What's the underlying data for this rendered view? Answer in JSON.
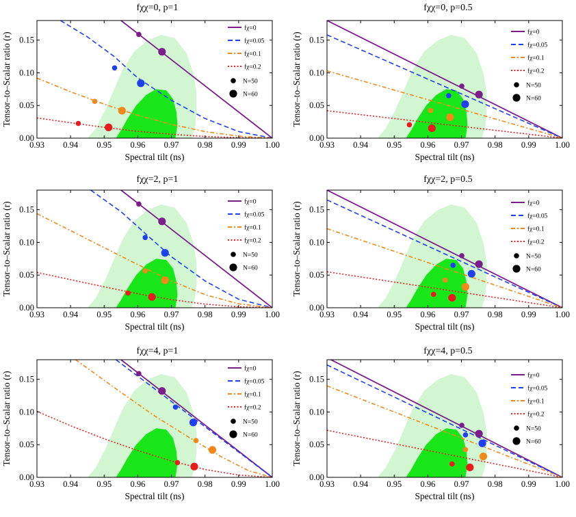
{
  "figure": {
    "legend_labels": [
      "fχ=0",
      "fχ=0.05",
      "fχ=0.1",
      "fχ=0.2"
    ],
    "legend_sizes": [
      "N=50",
      "N=60"
    ]
  },
  "chart_data": [
    {
      "type": "line",
      "title": "fχχ=0, p=1",
      "xlabel": "Spectral tilt (ns)",
      "ylabel": "Tensor–to–Scalar ratio (r)",
      "xlim": [
        0.93,
        1.0
      ],
      "ylim": [
        0,
        0.18
      ],
      "xticks": [
        "0.93",
        "0.94",
        "0.95",
        "0.96",
        "0.97",
        "0.98",
        "0.99",
        "1.00"
      ],
      "yticks": [
        "0.00",
        "0.05",
        "0.10",
        "0.15"
      ],
      "series": [
        {
          "name": "fχ=0",
          "color": "#7b1e8c",
          "dash": "solid",
          "line": [
            [
              0.955,
              0.18
            ],
            [
              1.0,
              0.0
            ]
          ],
          "points": [
            [
              0.9603,
              0.1587
            ],
            [
              0.9672,
              0.1322
            ]
          ]
        },
        {
          "name": "fχ=0.05",
          "color": "#1f3ff0",
          "dash": "dashed",
          "line": [
            [
              0.937,
              0.18
            ],
            [
              0.945,
              0.155
            ],
            [
              0.953,
              0.125
            ],
            [
              0.96,
              0.092
            ],
            [
              0.97,
              0.058
            ],
            [
              0.98,
              0.03
            ],
            [
              0.99,
              0.01
            ],
            [
              1.0,
              0.0
            ]
          ],
          "points": [
            [
              0.9531,
              0.1075
            ],
            [
              0.9609,
              0.084
            ]
          ]
        },
        {
          "name": "fχ=0.1",
          "color": "#f0891a",
          "dash": "dashdot",
          "line": [
            [
              0.93,
              0.092
            ],
            [
              0.94,
              0.071
            ],
            [
              0.95,
              0.052
            ],
            [
              0.96,
              0.035
            ],
            [
              0.97,
              0.021
            ],
            [
              0.98,
              0.01
            ],
            [
              0.99,
              0.003
            ],
            [
              1.0,
              0.0
            ]
          ],
          "points": [
            [
              0.9472,
              0.0563
            ],
            [
              0.9553,
              0.042
            ]
          ]
        },
        {
          "name": "fχ=0.2",
          "color": "#e81c1c",
          "dash": "dotted",
          "line": [
            [
              0.93,
              0.031
            ],
            [
              0.94,
              0.0235
            ],
            [
              0.95,
              0.0165
            ],
            [
              0.96,
              0.0105
            ],
            [
              0.97,
              0.006
            ],
            [
              0.98,
              0.0025
            ],
            [
              0.99,
              0.0007
            ],
            [
              1.0,
              0.0
            ]
          ],
          "points": [
            [
              0.9423,
              0.0225
            ],
            [
              0.9513,
              0.0165
            ]
          ]
        }
      ]
    },
    {
      "type": "line",
      "title": "fχχ=0, p=0.5",
      "xlabel": "Spectral tilt (ns)",
      "ylabel": "Tensor–to–Scalar ratio (r)",
      "xlim": [
        0.93,
        1.0
      ],
      "ylim": [
        0,
        0.18
      ],
      "xticks": [
        "0.93",
        "0.94",
        "0.95",
        "0.96",
        "0.97",
        "0.98",
        "0.99",
        "1.00"
      ],
      "yticks": [
        "0.00",
        "0.05",
        "0.10",
        "0.15"
      ],
      "series": [
        {
          "name": "fχ=0",
          "color": "#7b1e8c",
          "dash": "solid",
          "line": [
            [
              0.93,
              0.18
            ],
            [
              1.0,
              0.0
            ]
          ],
          "points": [
            [
              0.9701,
              0.0796
            ],
            [
              0.9752,
              0.0667
            ]
          ]
        },
        {
          "name": "fχ=0.05",
          "color": "#1f3ff0",
          "dash": "dashed",
          "line": [
            [
              0.93,
              0.158
            ],
            [
              1.0,
              0.0
            ]
          ],
          "points": [
            [
              0.9662,
              0.065
            ],
            [
              0.9711,
              0.052
            ]
          ]
        },
        {
          "name": "fχ=0.1",
          "color": "#f0891a",
          "dash": "dashdot",
          "line": [
            [
              0.93,
              0.103
            ],
            [
              1.0,
              0.0
            ]
          ],
          "points": [
            [
              0.9608,
              0.0425
            ],
            [
              0.9666,
              0.032
            ]
          ]
        },
        {
          "name": "fχ=0.2",
          "color": "#e81c1c",
          "dash": "dotted",
          "line": [
            [
              0.93,
              0.042
            ],
            [
              1.0,
              0.0
            ]
          ],
          "points": [
            [
              0.9545,
              0.0205
            ],
            [
              0.9612,
              0.0152
            ]
          ]
        }
      ]
    },
    {
      "type": "line",
      "title": "fχχ=2, p=1",
      "xlabel": "Spectral tilt (ns)",
      "ylabel": "Tensor–to–Scalar ratio (r)",
      "xlim": [
        0.93,
        1.0
      ],
      "ylim": [
        0,
        0.18
      ],
      "xticks": [
        "0.93",
        "0.94",
        "0.95",
        "0.96",
        "0.97",
        "0.98",
        "0.99",
        "1.00"
      ],
      "yticks": [
        "0.00",
        "0.05",
        "0.10",
        "0.15"
      ],
      "series": [
        {
          "name": "fχ=0",
          "color": "#7b1e8c",
          "dash": "solid",
          "line": [
            [
              0.955,
              0.18
            ],
            [
              1.0,
              0.0
            ]
          ],
          "points": [
            [
              0.9603,
              0.1587
            ],
            [
              0.9672,
              0.1322
            ]
          ]
        },
        {
          "name": "fχ=0.05",
          "color": "#1f3ff0",
          "dash": "dashed",
          "line": [
            [
              0.946,
              0.18
            ],
            [
              0.955,
              0.147
            ],
            [
              0.963,
              0.11
            ],
            [
              0.97,
              0.078
            ],
            [
              0.98,
              0.041
            ],
            [
              0.99,
              0.013
            ],
            [
              1.0,
              0.0
            ]
          ],
          "points": [
            [
              0.9622,
              0.1075
            ],
            [
              0.9681,
              0.084
            ]
          ]
        },
        {
          "name": "fχ=0.1",
          "color": "#f0891a",
          "dash": "dashdot",
          "line": [
            [
              0.93,
              0.144
            ],
            [
              0.94,
              0.118
            ],
            [
              0.95,
              0.092
            ],
            [
              0.96,
              0.066
            ],
            [
              0.97,
              0.041
            ],
            [
              0.98,
              0.02
            ],
            [
              0.99,
              0.006
            ],
            [
              1.0,
              0.0
            ]
          ],
          "points": [
            [
              0.9622,
              0.0563
            ],
            [
              0.9681,
              0.042
            ]
          ]
        },
        {
          "name": "fχ=0.2",
          "color": "#e81c1c",
          "dash": "dotted",
          "line": [
            [
              0.93,
              0.054
            ],
            [
              0.94,
              0.043
            ],
            [
              0.95,
              0.032
            ],
            [
              0.96,
              0.0215
            ],
            [
              0.97,
              0.0125
            ],
            [
              0.98,
              0.0055
            ],
            [
              0.99,
              0.0015
            ],
            [
              1.0,
              0.0
            ]
          ],
          "points": [
            [
              0.9571,
              0.0225
            ],
            [
              0.9642,
              0.0165
            ]
          ]
        }
      ]
    },
    {
      "type": "line",
      "title": "fχχ=2, p=0.5",
      "xlabel": "Spectral tilt (ns)",
      "ylabel": "Tensor–to–Scalar ratio (r)",
      "xlim": [
        0.93,
        1.0
      ],
      "ylim": [
        0,
        0.18
      ],
      "xticks": [
        "0.93",
        "0.94",
        "0.95",
        "0.96",
        "0.97",
        "0.98",
        "0.99",
        "1.00"
      ],
      "yticks": [
        "0.00",
        "0.05",
        "0.10",
        "0.15"
      ],
      "series": [
        {
          "name": "fχ=0",
          "color": "#7b1e8c",
          "dash": "solid",
          "line": [
            [
              0.93,
              0.18
            ],
            [
              1.0,
              0.0
            ]
          ],
          "points": [
            [
              0.9701,
              0.0796
            ],
            [
              0.9752,
              0.0667
            ]
          ]
        },
        {
          "name": "fχ=0.05",
          "color": "#1f3ff0",
          "dash": "dashed",
          "line": [
            [
              0.93,
              0.165
            ],
            [
              1.0,
              0.0
            ]
          ],
          "points": [
            [
              0.9675,
              0.065
            ],
            [
              0.973,
              0.052
            ]
          ]
        },
        {
          "name": "fχ=0.1",
          "color": "#f0891a",
          "dash": "dashdot",
          "line": [
            [
              0.93,
              0.121
            ],
            [
              1.0,
              0.0
            ]
          ],
          "points": [
            [
              0.9652,
              0.0425
            ],
            [
              0.9712,
              0.032
            ]
          ]
        },
        {
          "name": "fχ=0.2",
          "color": "#e81c1c",
          "dash": "dotted",
          "line": [
            [
              0.93,
              0.055
            ],
            [
              1.0,
              0.0
            ]
          ],
          "points": [
            [
              0.9617,
              0.0205
            ],
            [
              0.9672,
              0.0152
            ]
          ]
        }
      ]
    },
    {
      "type": "line",
      "title": "fχχ=4, p=1",
      "xlabel": "Spectral tilt (ns)",
      "ylabel": "Tensor–to–Scalar ratio (r)",
      "xlim": [
        0.93,
        1.0
      ],
      "ylim": [
        0,
        0.18
      ],
      "xticks": [
        "0.93",
        "0.94",
        "0.95",
        "0.96",
        "0.97",
        "0.98",
        "0.99",
        "1.00"
      ],
      "yticks": [
        "0.00",
        "0.05",
        "0.10",
        "0.15"
      ],
      "series": [
        {
          "name": "fχ=0",
          "color": "#7b1e8c",
          "dash": "solid",
          "line": [
            [
              0.955,
              0.18
            ],
            [
              1.0,
              0.0
            ]
          ],
          "points": [
            [
              0.9603,
              0.1587
            ],
            [
              0.9672,
              0.1322
            ]
          ]
        },
        {
          "name": "fχ=0.05",
          "color": "#1f3ff0",
          "dash": "dashed",
          "line": [
            [
              0.9535,
              0.18
            ],
            [
              1.0,
              0.0
            ]
          ],
          "points": [
            [
              0.9712,
              0.1075
            ],
            [
              0.9765,
              0.084
            ]
          ]
        },
        {
          "name": "fχ=0.1",
          "color": "#f0891a",
          "dash": "dashdot",
          "line": [
            [
              0.9415,
              0.18
            ],
            [
              0.955,
              0.13
            ],
            [
              0.965,
              0.094
            ],
            [
              0.975,
              0.062
            ],
            [
              0.985,
              0.031
            ],
            [
              0.993,
              0.01
            ],
            [
              1.0,
              0.0
            ]
          ],
          "points": [
            [
              0.9773,
              0.0563
            ],
            [
              0.9822,
              0.042
            ]
          ]
        },
        {
          "name": "fχ=0.2",
          "color": "#e81c1c",
          "dash": "dotted",
          "line": [
            [
              0.93,
              0.101
            ],
            [
              0.94,
              0.079
            ],
            [
              0.95,
              0.059
            ],
            [
              0.96,
              0.041
            ],
            [
              0.97,
              0.025
            ],
            [
              0.98,
              0.012
            ],
            [
              0.99,
              0.0035
            ],
            [
              1.0,
              0.0
            ]
          ],
          "points": [
            [
              0.9718,
              0.0225
            ],
            [
              0.9768,
              0.0165
            ]
          ]
        }
      ]
    },
    {
      "type": "line",
      "title": "fχχ=4, p=0.5",
      "xlabel": "Spectral tilt (ns)",
      "ylabel": "Tensor–to–Scalar ratio (r)",
      "xlim": [
        0.93,
        1.0
      ],
      "ylim": [
        0,
        0.18
      ],
      "xticks": [
        "0.93",
        "0.94",
        "0.95",
        "0.96",
        "0.97",
        "0.98",
        "0.99",
        "1.00"
      ],
      "yticks": [
        "0.00",
        "0.05",
        "0.10",
        "0.15"
      ],
      "series": [
        {
          "name": "fχ=0",
          "color": "#7b1e8c",
          "dash": "solid",
          "line": [
            [
              0.93,
              0.183
            ],
            [
              1.0,
              0.0
            ]
          ],
          "points": [
            [
              0.9701,
              0.0796
            ],
            [
              0.9752,
              0.0667
            ]
          ]
        },
        {
          "name": "fχ=0.05",
          "color": "#1f3ff0",
          "dash": "dashed",
          "line": [
            [
              0.93,
              0.172
            ],
            [
              1.0,
              0.0
            ]
          ],
          "points": [
            [
              0.9712,
              0.065
            ],
            [
              0.9762,
              0.052
            ]
          ]
        },
        {
          "name": "fχ=0.1",
          "color": "#f0891a",
          "dash": "dashdot",
          "line": [
            [
              0.93,
              0.14
            ],
            [
              1.0,
              0.0
            ]
          ],
          "points": [
            [
              0.9712,
              0.0425
            ],
            [
              0.9765,
              0.032
            ]
          ]
        },
        {
          "name": "fχ=0.2",
          "color": "#e81c1c",
          "dash": "dotted",
          "line": [
            [
              0.93,
              0.072
            ],
            [
              1.0,
              0.0
            ]
          ],
          "points": [
            [
              0.9672,
              0.0205
            ],
            [
              0.9725,
              0.0152
            ]
          ]
        }
      ]
    }
  ]
}
